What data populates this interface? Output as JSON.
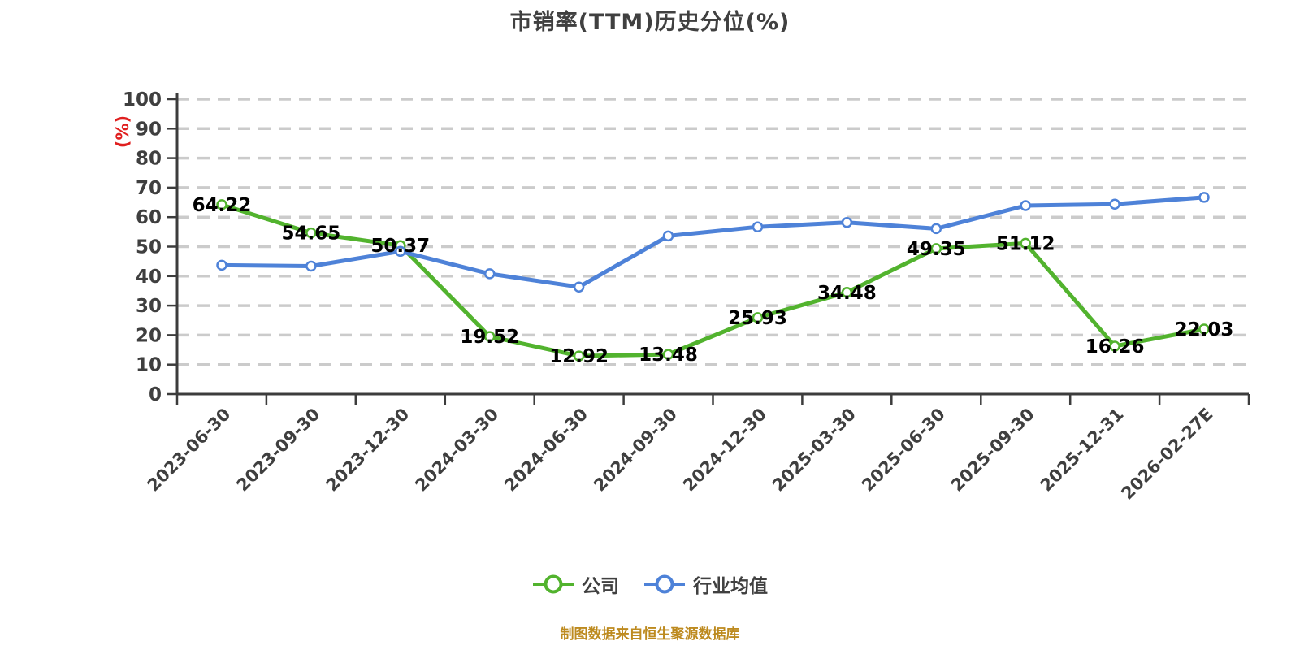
{
  "title": "市销率(TTM)历史分位(%)",
  "y_axis_unit": "(%)",
  "source_note": "制图数据来自恒生聚源数据库",
  "colors": {
    "company": "#52b32e",
    "industry": "#4e82d8",
    "grid": "#cbcbcb",
    "axis": "#3c3c3c",
    "axis_label": "#3f3f3f",
    "value_label": "#000000",
    "title": "#404040",
    "unit_label": "#e01f1f",
    "source_note": "#bd8a1f",
    "marker_fill": "#ffffff"
  },
  "legend": {
    "items": [
      "公司",
      "行业均值"
    ]
  },
  "chart_data": {
    "type": "line",
    "title": "市销率(TTM)历史分位(%)",
    "ylabel": "(%)",
    "ylim": [
      0,
      100
    ],
    "y_tick_step": 10,
    "grid": "horizontal-dashed",
    "legend_position": "bottom",
    "categories": [
      "2023-06-30",
      "2023-09-30",
      "2023-12-30",
      "2024-03-30",
      "2024-06-30",
      "2024-09-30",
      "2024-12-30",
      "2025-03-30",
      "2025-06-30",
      "2025-09-30",
      "2025-12-31",
      "2026-02-27E"
    ],
    "series": [
      {
        "name": "公司",
        "color": "#52b32e",
        "show_labels": true,
        "values": [
          64.22,
          54.65,
          50.37,
          19.52,
          12.92,
          13.48,
          25.93,
          34.48,
          49.35,
          51.12,
          16.26,
          22.03
        ]
      },
      {
        "name": "行业均值",
        "color": "#4e82d8",
        "show_labels": false,
        "values": [
          43.7,
          43.4,
          48.4,
          40.8,
          36.3,
          53.6,
          56.7,
          58.2,
          56.1,
          63.9,
          64.4,
          66.7
        ]
      }
    ]
  }
}
